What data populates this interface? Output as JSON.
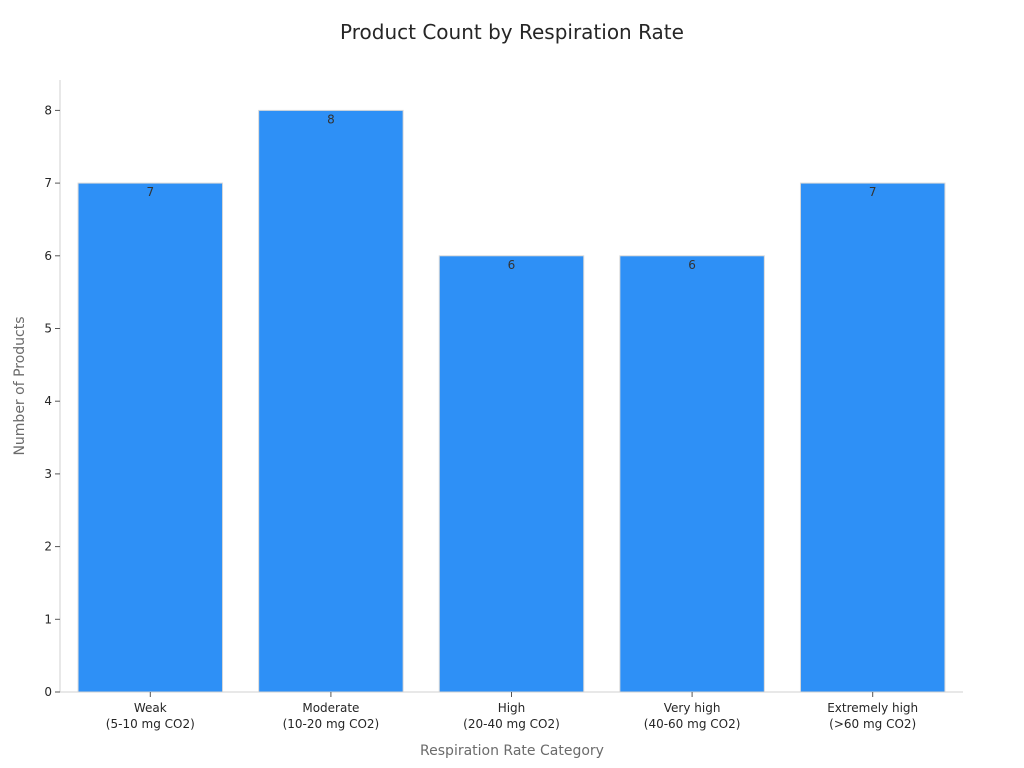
{
  "chart_data": {
    "type": "bar",
    "title": "Product Count by Respiration Rate",
    "xlabel": "Respiration Rate Category",
    "ylabel": "Number of Products",
    "categories": [
      [
        "Weak",
        "(5-10 mg CO2)"
      ],
      [
        "Moderate",
        "(10-20 mg CO2)"
      ],
      [
        "High",
        "(20-40 mg CO2)"
      ],
      [
        "Very high",
        "(40-60 mg CO2)"
      ],
      [
        "Extremely high",
        "(>60 mg CO2)"
      ]
    ],
    "values": [
      7,
      8,
      6,
      6,
      7
    ],
    "ylim": [
      0,
      8.4
    ],
    "yticks": [
      0,
      1,
      2,
      3,
      4,
      5,
      6,
      7,
      8
    ],
    "bar_color": "#2e90f6",
    "bar_edge_color": "#d9d9d9",
    "grid": false,
    "data_labels": true
  }
}
